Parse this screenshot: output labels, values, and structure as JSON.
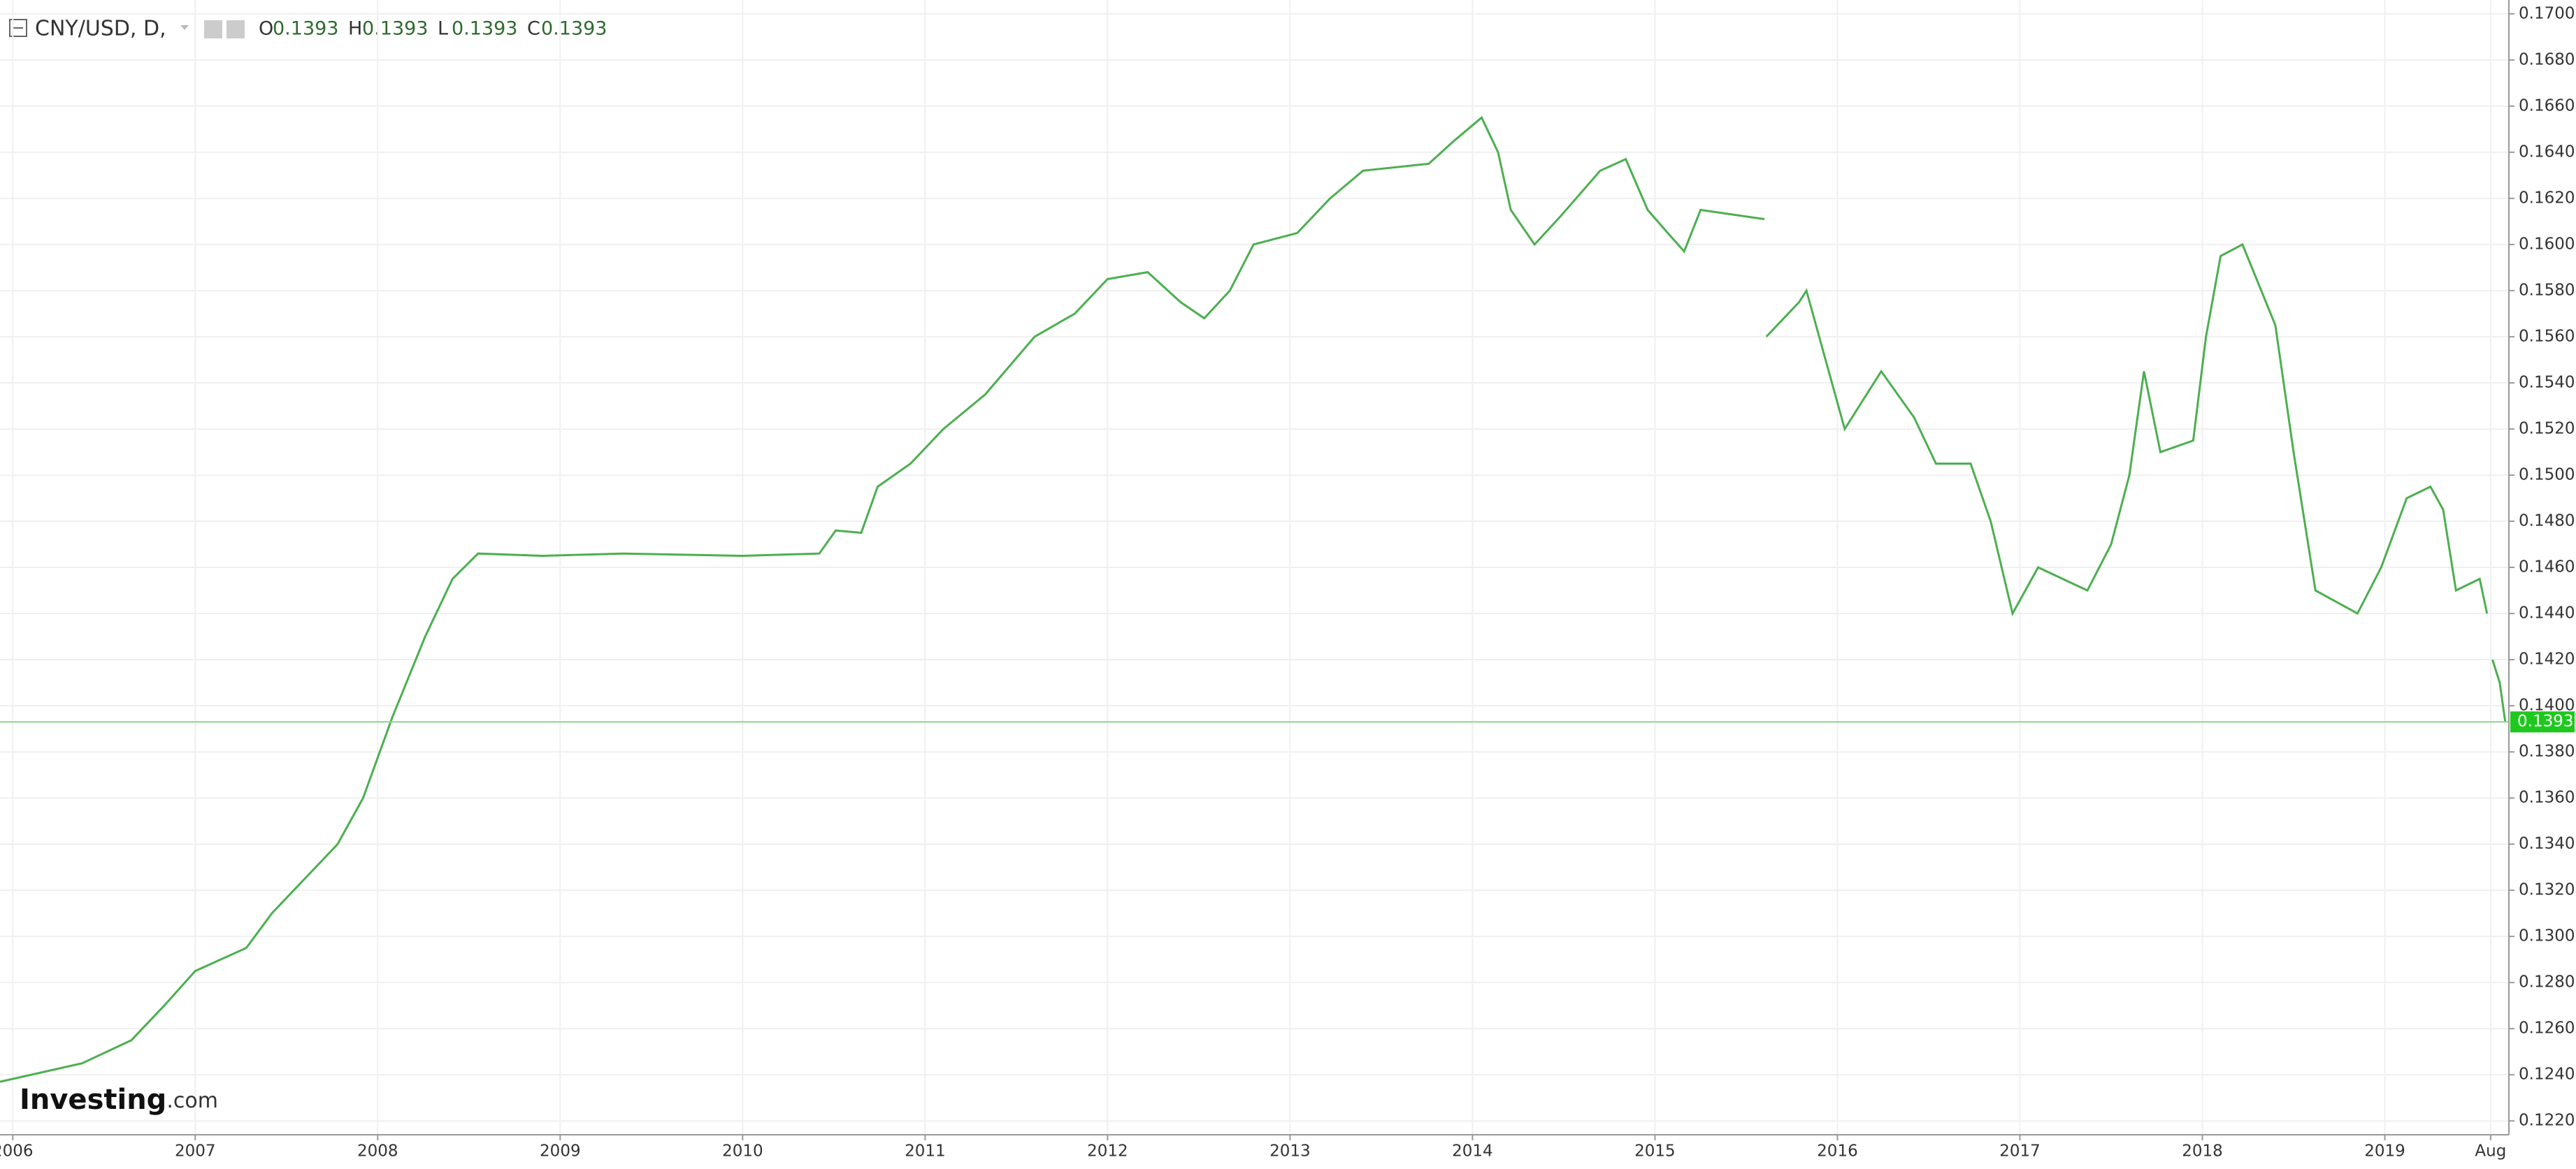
{
  "chart_data": {
    "type": "line",
    "title": "CNY/USD, D,",
    "ohlc": [
      {
        "label": "O",
        "value": 0.1393
      },
      {
        "label": "H",
        "value": 0.1393
      },
      {
        "label": "L",
        "value": 0.1393
      },
      {
        "label": "C",
        "value": 0.1393
      }
    ],
    "logo": {
      "brand": "Investing",
      "suffix": ".com"
    },
    "last_price": 0.1393,
    "series": [
      {
        "color": "#4caf50",
        "x": [
          2005.93,
          2006.38,
          2006.65,
          2006.83,
          2007.0,
          2007.28,
          2007.42,
          2007.6,
          2007.78,
          2007.92,
          2008.08,
          2008.26,
          2008.41,
          2008.55,
          2008.9,
          2009.35,
          2010.0,
          2010.42,
          2010.51,
          2010.65,
          2010.74,
          2010.92,
          2011.1,
          2011.33,
          2011.6,
          2011.82,
          2012.0,
          2012.22,
          2012.4,
          2012.53,
          2012.67,
          2012.8,
          2013.04,
          2013.22,
          2013.4,
          2013.76,
          2013.9,
          2014.05,
          2014.14,
          2014.21,
          2014.34,
          2014.48,
          2014.7,
          2014.84,
          2014.96,
          2015.07,
          2015.16,
          2015.25,
          2015.6,
          null,
          2015.61,
          2015.79,
          2015.83,
          2015.97,
          2016.04,
          2016.24,
          2016.42,
          2016.54,
          2016.73,
          2016.84,
          2016.96,
          2017.1,
          2017.37,
          2017.5,
          2017.6,
          2017.68,
          2017.77,
          2017.95,
          2018.02,
          2018.1,
          2018.22,
          2018.4,
          2018.5,
          2018.62,
          2018.85,
          2018.98,
          2019.12,
          2019.25,
          2019.32,
          2019.39,
          2019.52,
          2019.56,
          null,
          2019.59,
          2019.63,
          2019.66
        ],
        "values": [
          0.1237,
          0.1245,
          0.1255,
          0.127,
          0.1285,
          0.1295,
          0.131,
          0.1325,
          0.134,
          0.136,
          0.1395,
          0.143,
          0.1455,
          0.1466,
          0.1465,
          0.1466,
          0.1465,
          0.1466,
          0.1476,
          0.1475,
          0.1495,
          0.1505,
          0.152,
          0.1535,
          0.156,
          0.157,
          0.1585,
          0.1588,
          0.1575,
          0.1568,
          0.158,
          0.16,
          0.1605,
          0.162,
          0.1632,
          0.1635,
          0.1645,
          0.1655,
          0.164,
          0.1615,
          0.16,
          0.1612,
          0.1632,
          0.1637,
          0.1615,
          0.1605,
          0.1597,
          0.1615,
          0.1611,
          null,
          0.156,
          0.1575,
          0.158,
          0.154,
          0.152,
          0.1545,
          0.1525,
          0.1505,
          0.1505,
          0.148,
          0.144,
          0.146,
          0.145,
          0.147,
          0.15,
          0.1545,
          0.151,
          0.1515,
          0.156,
          0.1595,
          0.16,
          0.1565,
          0.151,
          0.145,
          0.144,
          0.146,
          0.149,
          0.1495,
          0.1485,
          0.145,
          0.1455,
          0.144,
          null,
          0.142,
          0.141,
          0.1393
        ]
      }
    ],
    "xlim": [
      2005.93,
      2019.68
    ],
    "xticks": [
      2006,
      2007,
      2008,
      2009,
      2010,
      2011,
      2012,
      2013,
      2014,
      2015,
      2016,
      2017,
      2018,
      2019,
      {
        "value": 2019.58,
        "label": "Aug"
      }
    ],
    "ylim": [
      0.1214,
      0.1706
    ],
    "yticks": [
      {
        "value": 0.122,
        "label": "0.1220"
      },
      {
        "value": 0.124,
        "label": "0.1240"
      },
      {
        "value": 0.126,
        "label": "0.1260"
      },
      {
        "value": 0.128,
        "label": "0.1280"
      },
      {
        "value": 0.13,
        "label": "0.1300"
      },
      {
        "value": 0.132,
        "label": "0.1320"
      },
      {
        "value": 0.134,
        "label": "0.1340"
      },
      {
        "value": 0.136,
        "label": "0.1360"
      },
      {
        "value": 0.138,
        "label": "0.1380"
      },
      {
        "value": 0.14,
        "label": "0.1400"
      },
      {
        "value": 0.142,
        "label": "0.1420"
      },
      {
        "value": 0.144,
        "label": "0.1440"
      },
      {
        "value": 0.146,
        "label": "0.1460"
      },
      {
        "value": 0.148,
        "label": "0.1480"
      },
      {
        "value": 0.15,
        "label": "0.1500"
      },
      {
        "value": 0.152,
        "label": "0.1520"
      },
      {
        "value": 0.154,
        "label": "0.1540"
      },
      {
        "value": 0.156,
        "label": "0.1560"
      },
      {
        "value": 0.158,
        "label": "0.1580"
      },
      {
        "value": 0.16,
        "label": "0.1600"
      },
      {
        "value": 0.162,
        "label": "0.1620"
      },
      {
        "value": 0.164,
        "label": "0.1640"
      },
      {
        "value": 0.166,
        "label": "0.1660"
      },
      {
        "value": 0.168,
        "label": "0.1680"
      },
      {
        "value": 0.17,
        "label": "0.1700"
      }
    ],
    "grid": true
  }
}
